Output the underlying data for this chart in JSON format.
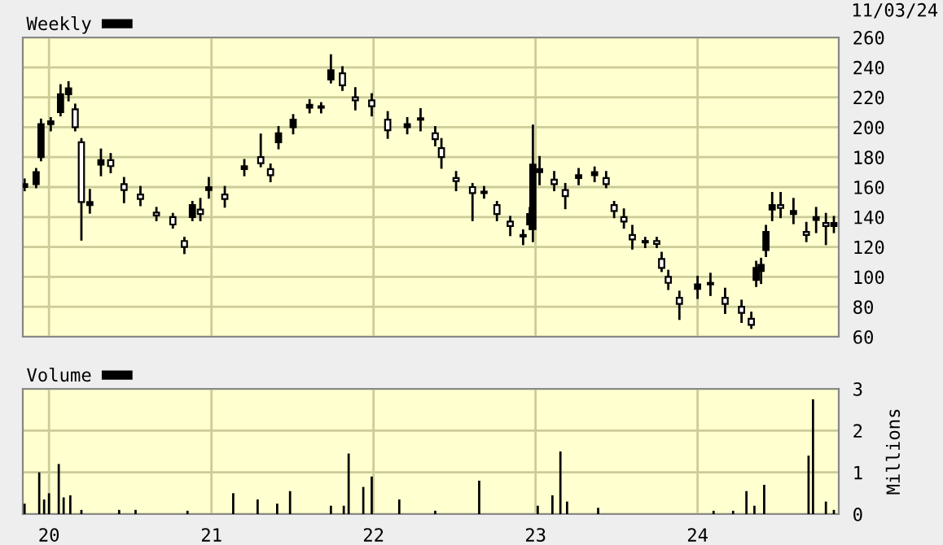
{
  "chart_data": [
    {
      "type": "candlestick",
      "legend": "top left",
      "grid": true,
      "tick_labels": "y",
      "annotations": [
        "11/03/24"
      ],
      "xlim": [
        "2019-11-03",
        "2024-11-14"
      ],
      "xticks": [
        {
          "value": "2020-01-01",
          "label": null
        },
        {
          "value": "2021-01-01",
          "label": null
        },
        {
          "value": "2022-01-01",
          "label": null
        },
        {
          "value": "2023-01-01",
          "label": null
        },
        {
          "value": "2024-01-01",
          "label": null
        }
      ],
      "ylim": [
        60,
        260
      ],
      "yticks": [
        60,
        80,
        100,
        120,
        140,
        160,
        180,
        200,
        220,
        240,
        260
      ],
      "series": [
        {
          "name": "Weekly",
          "color": "#000000",
          "x": [
            "2019-11-07",
            "2019-12-03",
            "2019-12-14",
            "2020-01-05",
            "2020-01-27",
            "2020-02-14",
            "2020-02-29",
            "2020-03-14",
            "2020-04-02",
            "2020-04-27",
            "2020-05-19",
            "2020-06-18",
            "2020-07-25",
            "2020-08-30",
            "2020-10-06",
            "2020-11-01",
            "2020-11-19",
            "2020-12-07",
            "2020-12-26",
            "2021-01-31",
            "2021-03-16",
            "2021-04-22",
            "2021-05-14",
            "2021-06-01",
            "2021-07-04",
            "2021-08-10",
            "2021-09-05",
            "2021-09-27",
            "2021-10-23",
            "2021-11-21",
            "2021-12-28",
            "2022-02-02",
            "2022-03-18",
            "2022-04-17",
            "2022-05-20",
            "2022-06-03",
            "2022-07-06",
            "2022-08-12",
            "2022-09-07",
            "2022-10-06",
            "2022-11-05",
            "2022-12-04",
            "2022-12-19",
            "2022-12-26",
            "2023-01-10",
            "2023-02-12",
            "2023-03-09",
            "2023-04-08",
            "2023-05-14",
            "2023-06-09",
            "2023-06-27",
            "2023-07-19",
            "2023-08-07",
            "2023-09-05",
            "2023-10-01",
            "2023-10-12",
            "2023-10-27",
            "2023-11-21",
            "2024-01-01",
            "2024-01-30",
            "2024-03-03",
            "2024-04-09",
            "2024-05-01",
            "2024-05-12",
            "2024-05-23",
            "2024-06-03",
            "2024-06-17",
            "2024-07-06",
            "2024-08-04",
            "2024-09-02",
            "2024-09-24",
            "2024-10-16",
            "2024-11-03"
          ],
          "ohlc": [
            [
              160,
              165,
              158,
              162
            ],
            [
              162,
              172,
              160,
              170
            ],
            [
              180,
              205,
              178,
              202
            ],
            [
              202,
              206,
              198,
              204
            ],
            [
              210,
              228,
              208,
              222
            ],
            [
              222,
              230,
              218,
              226
            ],
            [
              212,
              215,
              198,
              200
            ],
            [
              190,
              192,
              125,
              150
            ],
            [
              148,
              158,
              143,
              150
            ],
            [
              175,
              185,
              168,
              178
            ],
            [
              178,
              182,
              170,
              174
            ],
            [
              162,
              166,
              150,
              158
            ],
            [
              155,
              160,
              148,
              152
            ],
            [
              143,
              146,
              138,
              141
            ],
            [
              140,
              142,
              133,
              135
            ],
            [
              124,
              126,
              116,
              120
            ],
            [
              140,
              150,
              138,
              148
            ],
            [
              145,
              152,
              138,
              142
            ],
            [
              158,
              166,
              153,
              160
            ],
            [
              155,
              160,
              147,
              152
            ],
            [
              172,
              178,
              168,
              174
            ],
            [
              180,
              195,
              174,
              176
            ],
            [
              172,
              175,
              164,
              168
            ],
            [
              190,
              200,
              186,
              196
            ],
            [
              200,
              208,
              196,
              205
            ],
            [
              213,
              218,
              210,
              215
            ],
            [
              213,
              216,
              210,
              214
            ],
            [
              232,
              248,
              230,
              238
            ],
            [
              236,
              240,
              225,
              228
            ],
            [
              220,
              226,
              212,
              218
            ],
            [
              218,
              222,
              208,
              214
            ],
            [
              205,
              210,
              193,
              198
            ],
            [
              200,
              206,
              196,
              202
            ],
            [
              205,
              212,
              198,
              206
            ],
            [
              196,
              200,
              188,
              192
            ],
            [
              186,
              192,
              173,
              180
            ],
            [
              166,
              170,
              158,
              164
            ],
            [
              160,
              162,
              138,
              156
            ],
            [
              157,
              160,
              153,
              156
            ],
            [
              148,
              150,
              138,
              142
            ],
            [
              137,
              140,
              128,
              134
            ],
            [
              128,
              131,
              122,
              127
            ],
            [
              135,
              146,
              132,
              142
            ],
            [
              132,
              201,
              124,
              175
            ],
            [
              170,
              180,
              162,
              172
            ],
            [
              165,
              170,
              158,
              162
            ],
            [
              158,
              162,
              146,
              154
            ],
            [
              166,
              172,
              162,
              168
            ],
            [
              168,
              173,
              164,
              170
            ],
            [
              166,
              170,
              160,
              162
            ],
            [
              148,
              150,
              140,
              144
            ],
            [
              140,
              145,
              133,
              137
            ],
            [
              128,
              134,
              119,
              125
            ],
            [
              124,
              126,
              120,
              123
            ],
            [
              124,
              126,
              120,
              122
            ],
            [
              112,
              116,
              104,
              106
            ],
            [
              100,
              104,
              92,
              96
            ],
            [
              86,
              90,
              72,
              82
            ],
            [
              92,
              100,
              86,
              95
            ],
            [
              95,
              102,
              88,
              96
            ],
            [
              86,
              92,
              76,
              82
            ],
            [
              80,
              84,
              70,
              76
            ],
            [
              72,
              76,
              66,
              68
            ],
            [
              98,
              110,
              94,
              106
            ],
            [
              104,
              112,
              96,
              108
            ],
            [
              118,
              134,
              114,
              130
            ],
            [
              145,
              156,
              138,
              148
            ],
            [
              148,
              156,
              140,
              146
            ],
            [
              142,
              152,
              136,
              144
            ],
            [
              130,
              136,
              124,
              128
            ],
            [
              138,
              146,
              130,
              140
            ],
            [
              136,
              142,
              122,
              134
            ],
            [
              134,
              140,
              130,
              136
            ]
          ]
        }
      ]
    },
    {
      "type": "bar",
      "legend": "top left",
      "grid": true,
      "ylabel": "Millions",
      "xlim": [
        "2019-11-03",
        "2024-11-14"
      ],
      "xticks": [
        {
          "value": "2020-01-01",
          "label": "20"
        },
        {
          "value": "2021-01-01",
          "label": "21"
        },
        {
          "value": "2022-01-01",
          "label": "22"
        },
        {
          "value": "2023-01-01",
          "label": "23"
        },
        {
          "value": "2024-01-01",
          "label": "24"
        }
      ],
      "ylim": [
        0,
        3
      ],
      "yticks": [
        0,
        1,
        2,
        3
      ],
      "series": [
        {
          "name": "Volume",
          "color": "#000000",
          "x": [
            "2019-11-07",
            "2019-12-10",
            "2019-12-21",
            "2020-01-01",
            "2020-01-23",
            "2020-02-03",
            "2020-02-18",
            "2020-03-14",
            "2020-06-07",
            "2020-07-14",
            "2020-11-08",
            "2021-02-19",
            "2021-04-15",
            "2021-05-29",
            "2021-06-27",
            "2021-09-27",
            "2021-10-26",
            "2021-11-06",
            "2021-12-09",
            "2021-12-28",
            "2022-02-28",
            "2022-05-20",
            "2022-08-27",
            "2023-01-06",
            "2023-02-08",
            "2023-02-26",
            "2023-03-13",
            "2023-05-22",
            "2024-02-06",
            "2024-03-21",
            "2024-04-20",
            "2024-05-08",
            "2024-05-30",
            "2024-09-07",
            "2024-09-17",
            "2024-10-16",
            "2024-11-03"
          ],
          "values": [
            0.25,
            1.0,
            0.35,
            0.5,
            1.2,
            0.4,
            0.45,
            0.1,
            0.1,
            0.1,
            0.08,
            0.5,
            0.35,
            0.25,
            0.55,
            0.2,
            0.2,
            1.45,
            0.65,
            0.9,
            0.35,
            0.08,
            0.8,
            0.2,
            0.45,
            1.5,
            0.3,
            0.15,
            0.08,
            0.08,
            0.55,
            0.2,
            0.7,
            1.4,
            2.75,
            0.3,
            0.1
          ]
        }
      ]
    }
  ]
}
